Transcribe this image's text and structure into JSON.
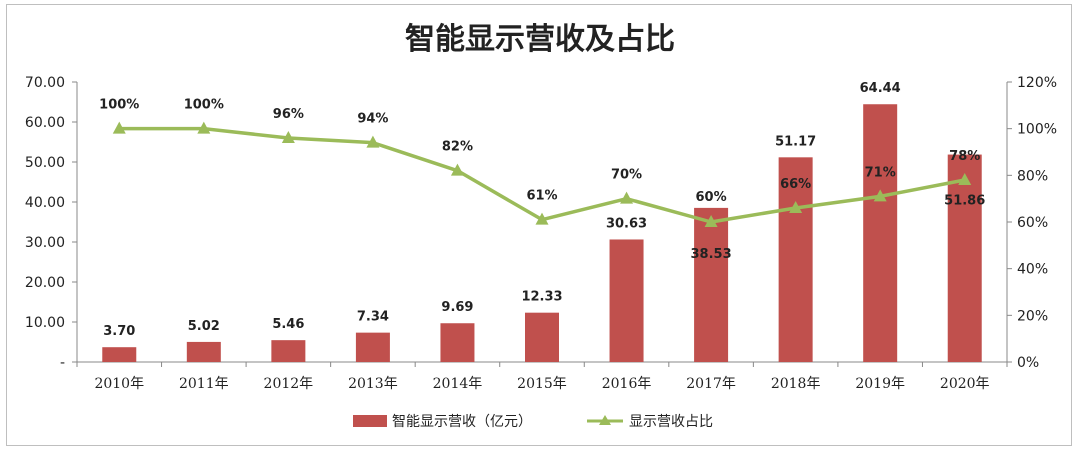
{
  "chart_data": {
    "type": "bar",
    "title": "智能显示营收及占比",
    "categories": [
      "2010年",
      "2011年",
      "2012年",
      "2013年",
      "2014年",
      "2015年",
      "2016年",
      "2017年",
      "2018年",
      "2019年",
      "2020年"
    ],
    "series": [
      {
        "name": "智能显示营收（亿元）",
        "type": "bar",
        "axis": "left",
        "color": "#c0504d",
        "values": [
          3.7,
          5.02,
          5.46,
          7.34,
          9.69,
          12.33,
          30.63,
          38.53,
          51.17,
          64.44,
          51.86
        ],
        "labels": [
          "3.70",
          "5.02",
          "5.46",
          "7.34",
          "9.69",
          "12.33",
          "30.63",
          "38.53",
          "51.17",
          "64.44",
          "51.86"
        ]
      },
      {
        "name": "显示营收占比",
        "type": "line",
        "axis": "right",
        "color": "#9bbb59",
        "marker": "triangle",
        "values": [
          100,
          100,
          96,
          94,
          82,
          61,
          70,
          60,
          66,
          71,
          78
        ],
        "labels": [
          "100%",
          "100%",
          "96%",
          "94%",
          "82%",
          "61%",
          "70%",
          "60%",
          "66%",
          "71%",
          "78%"
        ]
      }
    ],
    "y_left": {
      "range": [
        0,
        70
      ],
      "ticks": [
        0,
        10,
        20,
        30,
        40,
        50,
        60,
        70
      ],
      "tick_labels": [
        "-",
        "10.00",
        "20.00",
        "30.00",
        "40.00",
        "50.00",
        "60.00",
        "70.00"
      ]
    },
    "y_right": {
      "range": [
        0,
        120
      ],
      "ticks": [
        0,
        20,
        40,
        60,
        80,
        100,
        120
      ],
      "tick_labels": [
        "0%",
        "20%",
        "40%",
        "60%",
        "80%",
        "100%",
        "120%"
      ]
    },
    "grid": false,
    "legend_position": "bottom"
  }
}
